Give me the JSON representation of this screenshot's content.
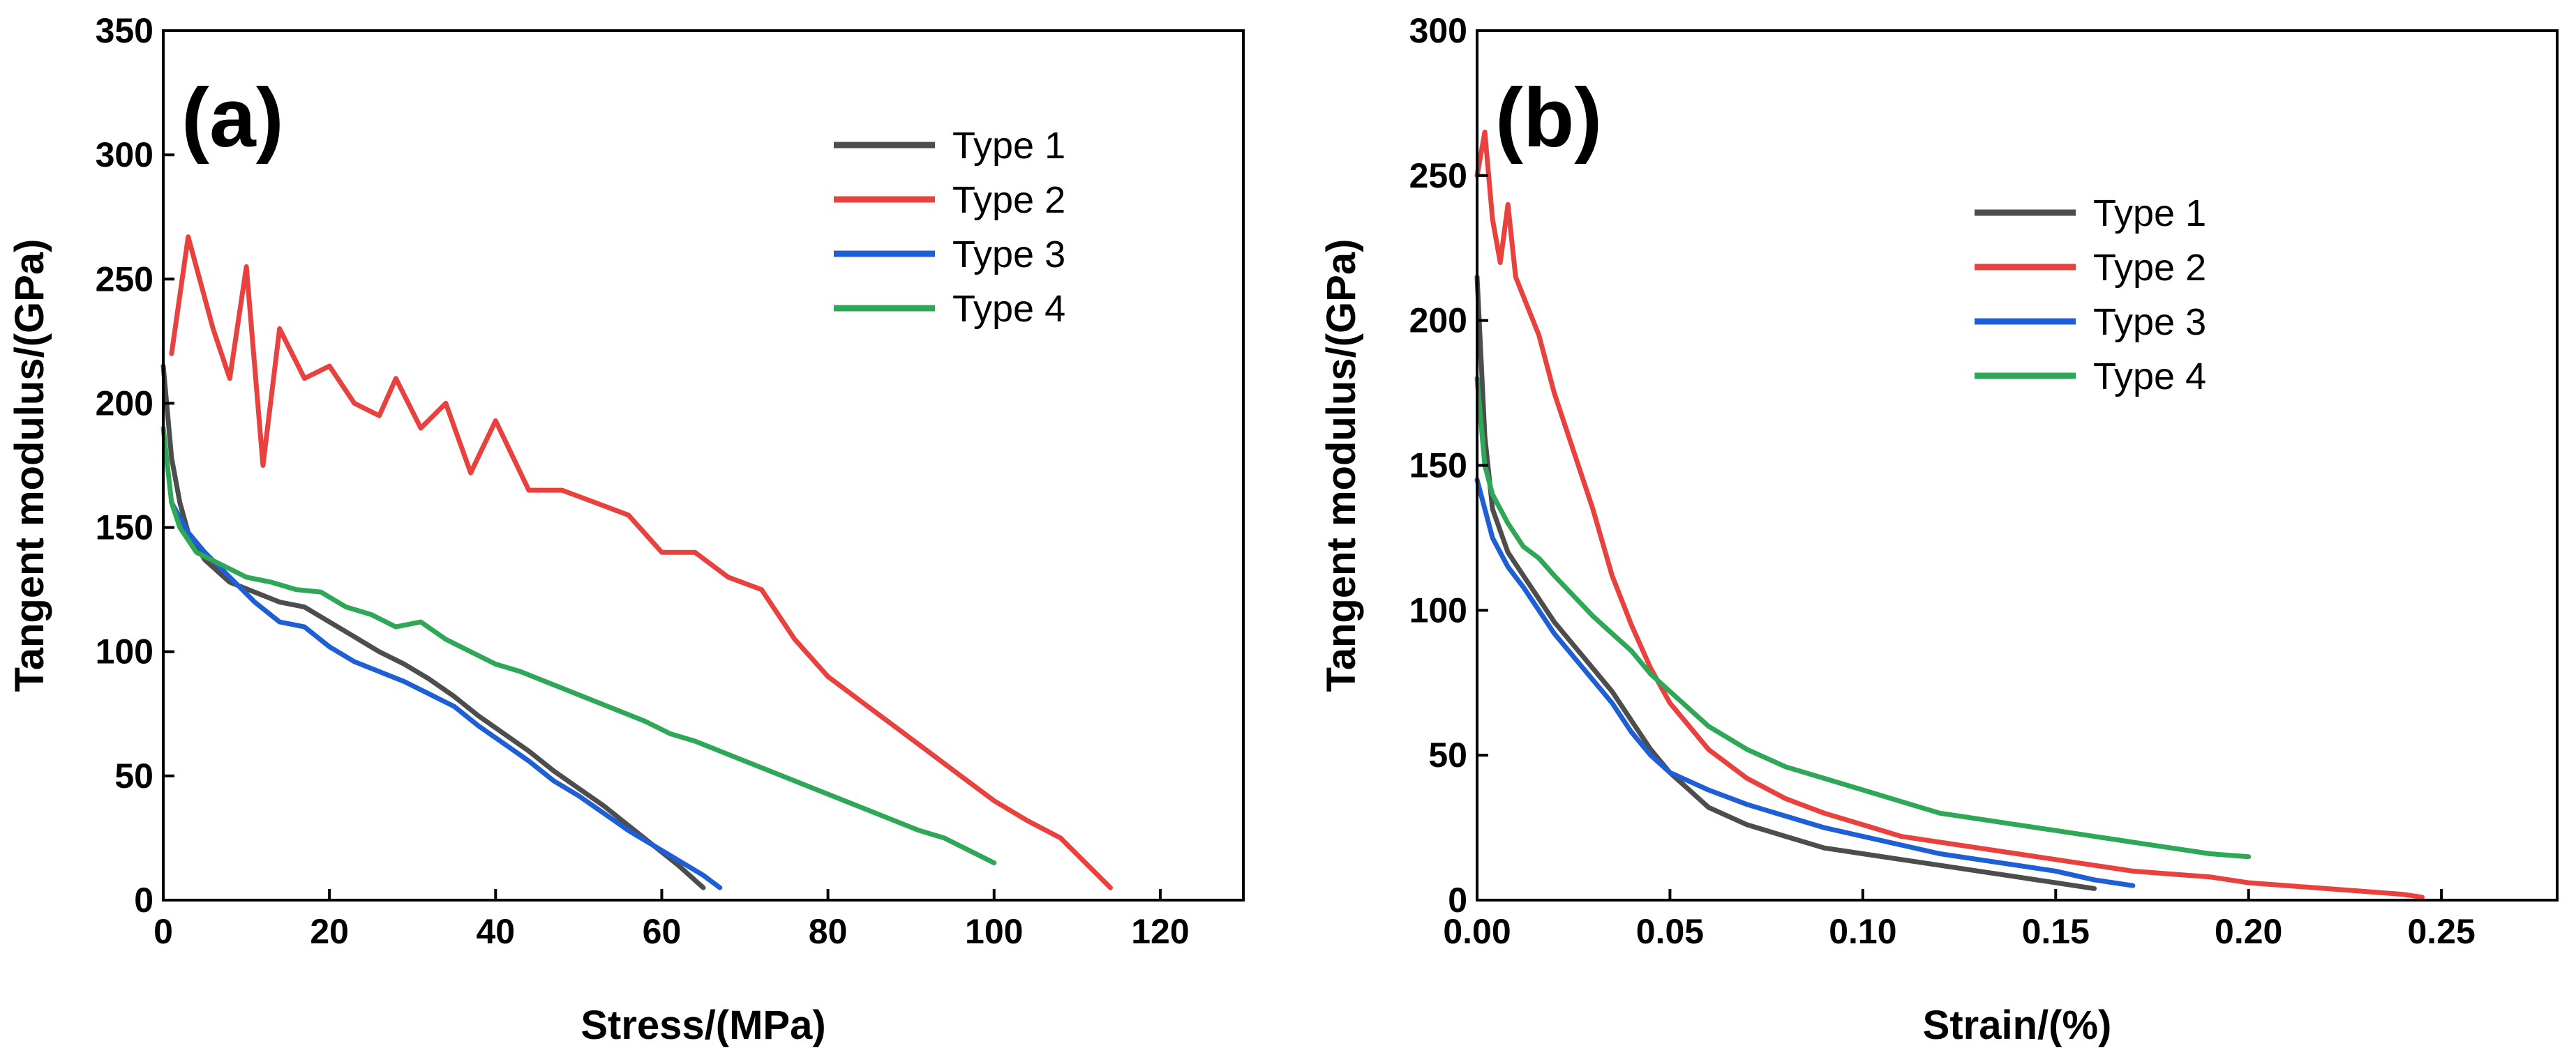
{
  "chart_data": [
    {
      "type": "line",
      "panel_label": "(a)",
      "xlabel": "Stress/(MPa)",
      "ylabel": "Tangent modulus/(GPa)",
      "xlim": [
        0,
        130
      ],
      "ylim": [
        0,
        350
      ],
      "xticks": [
        0,
        20,
        40,
        60,
        80,
        100,
        120
      ],
      "yticks": [
        0,
        50,
        100,
        150,
        200,
        250,
        300,
        350
      ],
      "legend_position": "top-right",
      "series": [
        {
          "name": "Type 1",
          "color": "#4d4d4d",
          "x": [
            0,
            1,
            2,
            3,
            5,
            8,
            11,
            14,
            17,
            20,
            23,
            26,
            29,
            32,
            35,
            38,
            41,
            44,
            47,
            50,
            53,
            56,
            59,
            62,
            65
          ],
          "y": [
            215,
            178,
            160,
            148,
            137,
            128,
            124,
            120,
            118,
            112,
            106,
            100,
            95,
            89,
            82,
            74,
            67,
            60,
            52,
            45,
            38,
            30,
            22,
            14,
            5
          ]
        },
        {
          "name": "Type 2",
          "color": "#e8413e",
          "x": [
            1,
            3,
            6,
            8,
            10,
            12,
            14,
            17,
            20,
            23,
            26,
            28,
            31,
            34,
            37,
            40,
            44,
            48,
            52,
            56,
            60,
            64,
            68,
            72,
            76,
            80,
            84,
            88,
            92,
            96,
            100,
            104,
            108,
            111,
            114
          ],
          "y": [
            220,
            267,
            230,
            210,
            255,
            175,
            230,
            210,
            215,
            200,
            195,
            210,
            190,
            200,
            172,
            193,
            165,
            165,
            160,
            155,
            140,
            140,
            130,
            125,
            105,
            90,
            80,
            70,
            60,
            50,
            40,
            32,
            25,
            15,
            5
          ]
        },
        {
          "name": "Type 3",
          "color": "#1f5fd6",
          "x": [
            1,
            3,
            5,
            8,
            11,
            14,
            17,
            20,
            23,
            26,
            29,
            32,
            35,
            38,
            41,
            44,
            47,
            50,
            53,
            56,
            59,
            62,
            65,
            67
          ],
          "y": [
            160,
            148,
            140,
            130,
            120,
            112,
            110,
            102,
            96,
            92,
            88,
            83,
            78,
            70,
            63,
            56,
            48,
            42,
            35,
            28,
            22,
            16,
            10,
            5
          ]
        },
        {
          "name": "Type 4",
          "color": "#2ea856",
          "x": [
            0,
            1,
            2,
            4,
            7,
            10,
            13,
            16,
            19,
            22,
            25,
            28,
            31,
            34,
            37,
            40,
            43,
            46,
            49,
            52,
            55,
            58,
            61,
            64,
            67,
            70,
            73,
            76,
            79,
            82,
            85,
            88,
            91,
            94,
            97,
            100
          ],
          "y": [
            190,
            160,
            150,
            140,
            135,
            130,
            128,
            125,
            124,
            118,
            115,
            110,
            112,
            105,
            100,
            95,
            92,
            88,
            84,
            80,
            76,
            72,
            67,
            64,
            60,
            56,
            52,
            48,
            44,
            40,
            36,
            32,
            28,
            25,
            20,
            15
          ]
        }
      ]
    },
    {
      "type": "line",
      "panel_label": "(b)",
      "xlabel": "Strain/(%)",
      "ylabel": "Tangent modulus/(GPa)",
      "xlim": [
        0,
        0.28
      ],
      "ylim": [
        0,
        300
      ],
      "xticks": [
        0.0,
        0.05,
        0.1,
        0.15,
        0.2,
        0.25
      ],
      "xtick_labels": [
        "0.00",
        "0.05",
        "0.10",
        "0.15",
        "0.20",
        "0.25"
      ],
      "yticks": [
        0,
        50,
        100,
        150,
        200,
        250,
        300
      ],
      "legend_position": "top-right",
      "series": [
        {
          "name": "Type 1",
          "color": "#4d4d4d",
          "x": [
            0,
            0.002,
            0.004,
            0.008,
            0.012,
            0.016,
            0.02,
            0.025,
            0.03,
            0.035,
            0.04,
            0.045,
            0.05,
            0.055,
            0.06,
            0.07,
            0.08,
            0.09,
            0.1,
            0.11,
            0.12,
            0.13,
            0.14,
            0.15,
            0.16
          ],
          "y": [
            215,
            160,
            135,
            120,
            112,
            104,
            96,
            88,
            80,
            72,
            62,
            52,
            44,
            38,
            32,
            26,
            22,
            18,
            16,
            14,
            12,
            10,
            8,
            6,
            4
          ]
        },
        {
          "name": "Type 2",
          "color": "#e8413e",
          "x": [
            0,
            0.002,
            0.004,
            0.006,
            0.008,
            0.01,
            0.013,
            0.016,
            0.02,
            0.025,
            0.03,
            0.035,
            0.04,
            0.045,
            0.05,
            0.06,
            0.07,
            0.08,
            0.09,
            0.1,
            0.11,
            0.12,
            0.13,
            0.14,
            0.15,
            0.16,
            0.17,
            0.18,
            0.19,
            0.2,
            0.21,
            0.22,
            0.23,
            0.24,
            0.245
          ],
          "y": [
            250,
            265,
            235,
            220,
            240,
            215,
            205,
            195,
            175,
            155,
            135,
            112,
            95,
            80,
            68,
            52,
            42,
            35,
            30,
            26,
            22,
            20,
            18,
            16,
            14,
            12,
            10,
            9,
            8,
            6,
            5,
            4,
            3,
            2,
            1
          ]
        },
        {
          "name": "Type 3",
          "color": "#1f5fd6",
          "x": [
            0,
            0.002,
            0.004,
            0.008,
            0.012,
            0.016,
            0.02,
            0.025,
            0.03,
            0.035,
            0.04,
            0.045,
            0.05,
            0.06,
            0.07,
            0.08,
            0.09,
            0.1,
            0.11,
            0.12,
            0.13,
            0.14,
            0.15,
            0.16,
            0.17
          ],
          "y": [
            145,
            135,
            125,
            115,
            108,
            100,
            92,
            84,
            76,
            68,
            58,
            50,
            44,
            38,
            33,
            29,
            25,
            22,
            19,
            16,
            14,
            12,
            10,
            7,
            5
          ]
        },
        {
          "name": "Type 4",
          "color": "#2ea856",
          "x": [
            0,
            0.002,
            0.004,
            0.008,
            0.012,
            0.016,
            0.02,
            0.025,
            0.03,
            0.035,
            0.04,
            0.045,
            0.05,
            0.06,
            0.07,
            0.08,
            0.09,
            0.1,
            0.11,
            0.12,
            0.13,
            0.14,
            0.15,
            0.16,
            0.17,
            0.18,
            0.19,
            0.2
          ],
          "y": [
            180,
            150,
            140,
            130,
            122,
            118,
            112,
            105,
            98,
            92,
            86,
            78,
            72,
            60,
            52,
            46,
            42,
            38,
            34,
            30,
            28,
            26,
            24,
            22,
            20,
            18,
            16,
            15
          ]
        }
      ]
    }
  ]
}
